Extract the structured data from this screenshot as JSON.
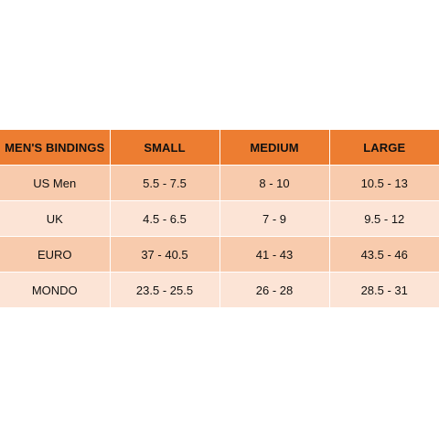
{
  "colors": {
    "header_bg": "#ED7D31",
    "row_dark_bg": "#F8CBAD",
    "row_light_bg": "#FCE4D6",
    "text": "#111111"
  },
  "table": {
    "headers": [
      "MEN'S BINDINGS",
      "SMALL",
      "MEDIUM",
      "LARGE"
    ],
    "rows": [
      [
        "US Men",
        "5.5 - 7.5",
        "8 - 10",
        "10.5 - 13"
      ],
      [
        "UK",
        "4.5 - 6.5",
        "7 - 9",
        "9.5 - 12"
      ],
      [
        "EURO",
        "37 - 40.5",
        "41 - 43",
        "43.5 - 46"
      ],
      [
        "MONDO",
        "23.5 - 25.5",
        "26 - 28",
        "28.5 - 31"
      ]
    ]
  }
}
